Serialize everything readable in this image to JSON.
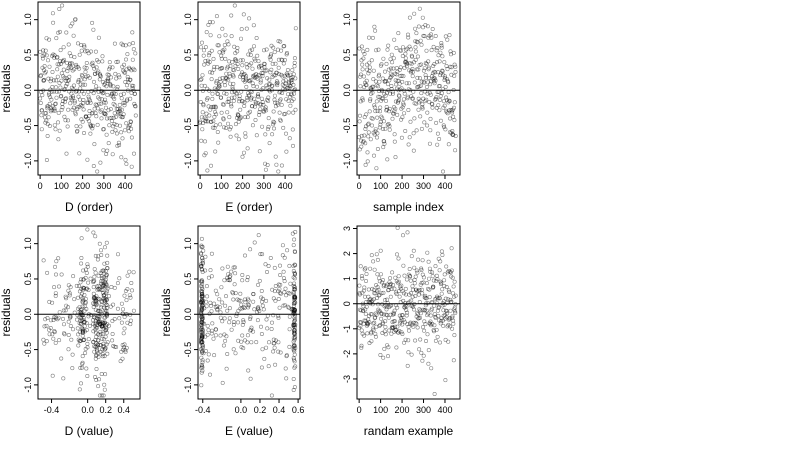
{
  "chart_data": [
    {
      "type": "scatter",
      "xlabel": "D (order)",
      "ylabel": "residuals",
      "xlim": [
        -10,
        470
      ],
      "ylim": [
        -1.2,
        1.25
      ],
      "x_ticks": [
        0,
        100,
        200,
        300,
        400
      ],
      "y_ticks": [
        -1.0,
        -0.5,
        0.0,
        0.5,
        1.0
      ],
      "x_tick_labels": [
        "0",
        "100",
        "200",
        "300",
        "400"
      ],
      "y_tick_labels": [
        "-1.0",
        "-0.5",
        "0.0",
        "0.5",
        "1.0"
      ],
      "reference_line_y": 0,
      "points": {
        "pattern": "order",
        "n": 450,
        "seed": 11,
        "x_min": 0,
        "x_max": 450,
        "sd": 0.42,
        "trend": "rise-fall"
      }
    },
    {
      "type": "scatter",
      "xlabel": "E (order)",
      "ylabel": "residuals",
      "xlim": [
        -10,
        470
      ],
      "ylim": [
        -1.2,
        1.25
      ],
      "x_ticks": [
        0,
        100,
        200,
        300,
        400
      ],
      "y_ticks": [
        -1.0,
        -0.5,
        0.0,
        0.5,
        1.0
      ],
      "x_tick_labels": [
        "0",
        "100",
        "200",
        "300",
        "400"
      ],
      "y_tick_labels": [
        "-1.0",
        "-0.5",
        "0.0",
        "0.5",
        "1.0"
      ],
      "reference_line_y": 0,
      "points": {
        "pattern": "order",
        "n": 450,
        "seed": 23,
        "x_min": 0,
        "x_max": 450,
        "sd": 0.42,
        "trend": "flat"
      }
    },
    {
      "type": "scatter",
      "xlabel": "sample index",
      "ylabel": "residuals",
      "xlim": [
        -10,
        470
      ],
      "ylim": [
        -1.2,
        1.25
      ],
      "x_ticks": [
        0,
        100,
        200,
        300,
        400
      ],
      "y_ticks": [
        -1.0,
        -0.5,
        0.0,
        0.5,
        1.0
      ],
      "x_tick_labels": [
        "0",
        "100",
        "200",
        "300",
        "400"
      ],
      "y_tick_labels": [
        "-1.0",
        "-0.5",
        "0.0",
        "0.5",
        "1.0"
      ],
      "reference_line_y": 0,
      "points": {
        "pattern": "order",
        "n": 450,
        "seed": 37,
        "x_min": 0,
        "x_max": 450,
        "sd": 0.42,
        "trend": "dip-rise"
      }
    },
    {
      "type": "scatter",
      "xlabel": "D (value)",
      "ylabel": "residuals",
      "xlim": [
        -0.55,
        0.58
      ],
      "ylim": [
        -1.2,
        1.25
      ],
      "x_ticks": [
        -0.4,
        0.0,
        0.2,
        0.4
      ],
      "y_ticks": [
        -1.0,
        -0.5,
        0.0,
        0.5,
        1.0
      ],
      "x_tick_labels": [
        "-0.4",
        "0.0",
        "0.2",
        "0.4"
      ],
      "y_tick_labels": [
        "-1.0",
        "-0.5",
        "0.0",
        "0.5",
        "1.0"
      ],
      "reference_line_y": 0,
      "points": {
        "pattern": "clusters",
        "n": 450,
        "seed": 51,
        "x_min": -0.5,
        "x_max": 0.52,
        "sd": 0.42,
        "centers": [
          -0.05,
          0.1,
          0.18
        ]
      }
    },
    {
      "type": "scatter",
      "xlabel": "E (value)",
      "ylabel": "residuals",
      "xlim": [
        -0.45,
        0.62
      ],
      "ylim": [
        -1.2,
        1.25
      ],
      "x_ticks": [
        -0.4,
        0.0,
        0.2,
        0.4,
        0.6
      ],
      "y_ticks": [
        -1.0,
        -0.5,
        0.0,
        0.5,
        1.0
      ],
      "x_tick_labels": [
        "-0.4",
        "0.0",
        "0.2",
        "0.4",
        "0.6"
      ],
      "y_tick_labels": [
        "-1.0",
        "-0.5",
        "0.0",
        "0.5",
        "1.0"
      ],
      "reference_line_y": 0,
      "points": {
        "pattern": "edges",
        "n": 450,
        "seed": 67,
        "x_min": -0.41,
        "x_max": 0.57,
        "sd": 0.42,
        "centers": [
          -0.41,
          0.56
        ]
      }
    },
    {
      "type": "scatter",
      "xlabel": "randam example",
      "ylabel": "residuals",
      "xlim": [
        -10,
        470
      ],
      "ylim": [
        -3.8,
        3.1
      ],
      "x_ticks": [
        0,
        100,
        200,
        300,
        400
      ],
      "y_ticks": [
        -3,
        -2,
        -1,
        0,
        1,
        2,
        3
      ],
      "x_tick_labels": [
        "0",
        "100",
        "200",
        "300",
        "400"
      ],
      "y_tick_labels": [
        "-3",
        "-2",
        "-1",
        "0",
        "1",
        "2",
        "3"
      ],
      "reference_line_y": 0,
      "points": {
        "pattern": "order",
        "n": 450,
        "seed": 89,
        "x_min": 0,
        "x_max": 450,
        "sd": 1.0,
        "trend": "flat"
      }
    }
  ]
}
